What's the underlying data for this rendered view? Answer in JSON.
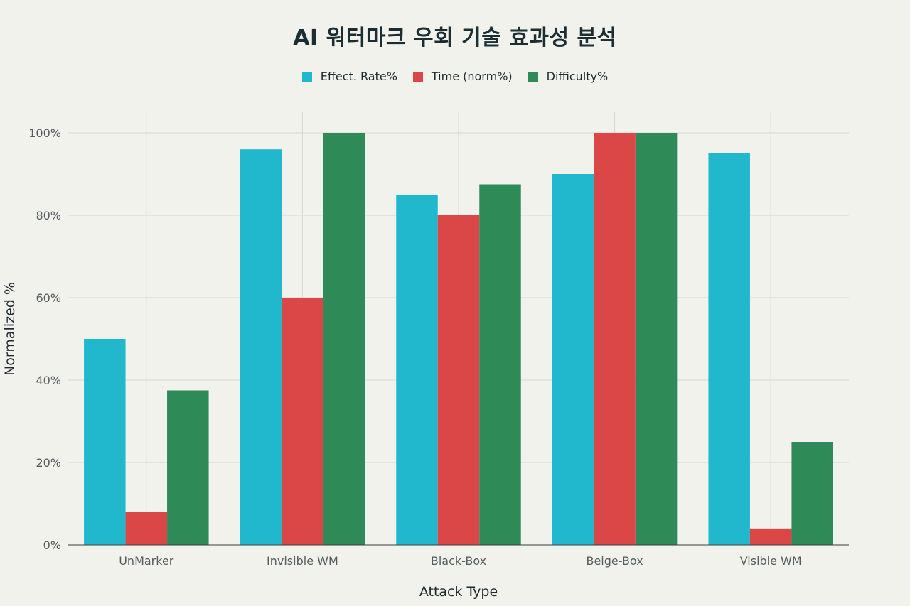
{
  "chart_data": {
    "type": "bar",
    "title": "AI 워터마크 우회 기술 효과성 분석",
    "xlabel": "Attack Type",
    "ylabel": "Normalized %",
    "categories": [
      "UnMarker",
      "Invisible WM",
      "Black-Box",
      "Beige-Box",
      "Visible WM"
    ],
    "series": [
      {
        "name": "Effect. Rate%",
        "color": "#21b8cd",
        "values": [
          50,
          96,
          85,
          90,
          95
        ]
      },
      {
        "name": "Time (norm%)",
        "color": "#db4646",
        "values": [
          8,
          60,
          80,
          100,
          4
        ]
      },
      {
        "name": "Difficulty%",
        "color": "#2e8b57",
        "values": [
          37.5,
          100,
          87.5,
          100,
          25
        ]
      }
    ],
    "ylim": [
      0,
      100
    ],
    "yticks": [
      0,
      20,
      40,
      60,
      80,
      100
    ],
    "ytick_labels": [
      "0%",
      "20%",
      "40%",
      "60%",
      "80%",
      "100%"
    ],
    "grid": true,
    "legend_position": "top-center"
  }
}
